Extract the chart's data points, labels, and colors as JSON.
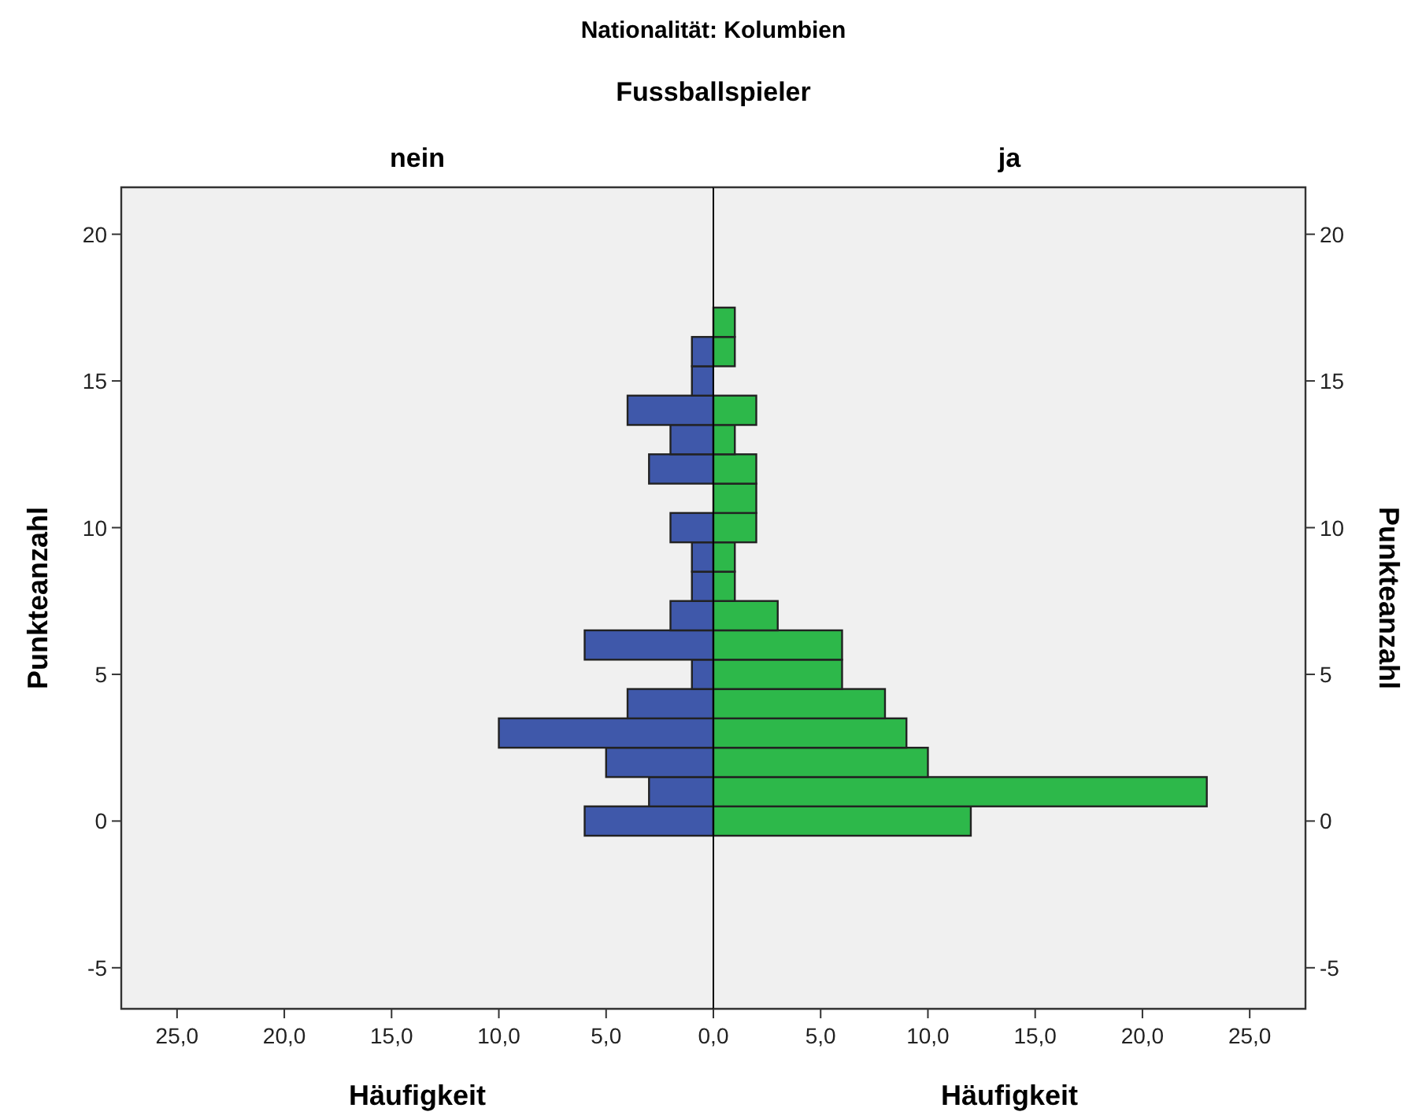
{
  "chart_data": [
    {
      "type": "histogram",
      "orientation": "horizontal",
      "title": "Nationalität: Kolumbien",
      "subtitle": "Fussballspieler",
      "xlabel": "Häufigkeit",
      "ylabel": "Punkteanzahl",
      "bins": [
        -0.5,
        0.5,
        1.5,
        2.5,
        3.5,
        4.5,
        5.5,
        6.5,
        7.5,
        8.5,
        9.5,
        10.5,
        11.5,
        12.5,
        13.5,
        14.5,
        15.5,
        16.5,
        17.5
      ],
      "series": [
        {
          "name": "nein",
          "color": "#3f58aa",
          "values": [
            6,
            3,
            5,
            10,
            4,
            1,
            6,
            2,
            1,
            1,
            2,
            0,
            3,
            2,
            4,
            1,
            1,
            0
          ]
        }
      ],
      "xlim": [
        27.6,
        0
      ],
      "xticks": [
        {
          "value": 25,
          "label": "25,0"
        },
        {
          "value": 20,
          "label": "20,0"
        },
        {
          "value": 15,
          "label": "15,0"
        },
        {
          "value": 10,
          "label": "10,0"
        },
        {
          "value": 5,
          "label": "5,0"
        },
        {
          "value": 0,
          "label": null
        }
      ],
      "ylim": [
        -6.4,
        21.6
      ],
      "yticks": [
        -5,
        0,
        5,
        10,
        15,
        20
      ],
      "grid": false
    },
    {
      "type": "histogram",
      "orientation": "horizontal",
      "xlabel": "Häufigkeit",
      "ylabel": "Punkteanzahl",
      "bins": [
        -0.5,
        0.5,
        1.5,
        2.5,
        3.5,
        4.5,
        5.5,
        6.5,
        7.5,
        8.5,
        9.5,
        10.5,
        11.5,
        12.5,
        13.5,
        14.5,
        15.5,
        16.5,
        17.5
      ],
      "series": [
        {
          "name": "ja",
          "color": "#2db84a",
          "values": [
            12,
            23,
            10,
            9,
            8,
            6,
            6,
            3,
            1,
            1,
            2,
            2,
            2,
            1,
            2,
            0,
            1,
            1
          ]
        }
      ],
      "xlim": [
        0,
        27.6
      ],
      "xticks": [
        {
          "value": 0,
          "label": "0,0"
        },
        {
          "value": 5,
          "label": "5,0"
        },
        {
          "value": 10,
          "label": "10,0"
        },
        {
          "value": 15,
          "label": "15,0"
        },
        {
          "value": 20,
          "label": "20,0"
        },
        {
          "value": 25,
          "label": "25,0"
        }
      ],
      "ylim": [
        -6.4,
        21.6
      ],
      "yticks": [
        -5,
        0,
        5,
        10,
        15,
        20
      ],
      "grid": false
    }
  ]
}
